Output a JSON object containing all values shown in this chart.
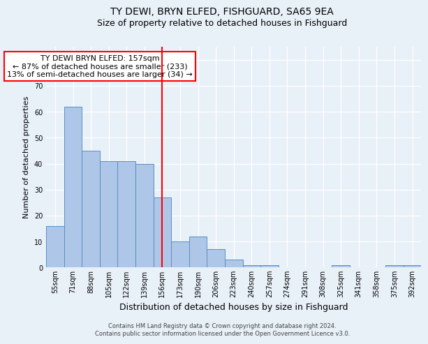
{
  "title1": "TY DEWI, BRYN ELFED, FISHGUARD, SA65 9EA",
  "title2": "Size of property relative to detached houses in Fishguard",
  "xlabel": "Distribution of detached houses by size in Fishguard",
  "ylabel": "Number of detached properties",
  "categories": [
    "55sqm",
    "71sqm",
    "88sqm",
    "105sqm",
    "122sqm",
    "139sqm",
    "156sqm",
    "173sqm",
    "190sqm",
    "206sqm",
    "223sqm",
    "240sqm",
    "257sqm",
    "274sqm",
    "291sqm",
    "308sqm",
    "325sqm",
    "341sqm",
    "358sqm",
    "375sqm",
    "392sqm"
  ],
  "values": [
    16,
    62,
    45,
    41,
    41,
    40,
    27,
    10,
    12,
    7,
    3,
    1,
    1,
    0,
    0,
    0,
    1,
    0,
    0,
    1,
    1
  ],
  "bar_color": "#aec6e8",
  "bar_edge_color": "#5a8fc0",
  "highlight_index": 6,
  "annotation_line1": "TY DEWI BRYN ELFED: 157sqm",
  "annotation_line2": "← 87% of detached houses are smaller (233)",
  "annotation_line3": "13% of semi-detached houses are larger (34) →",
  "annotation_box_color": "white",
  "annotation_box_edge_color": "red",
  "ylim": [
    0,
    85
  ],
  "yticks": [
    0,
    10,
    20,
    30,
    40,
    50,
    60,
    70,
    80
  ],
  "footer1": "Contains HM Land Registry data © Crown copyright and database right 2024.",
  "footer2": "Contains public sector information licensed under the Open Government Licence v3.0.",
  "background_color": "#e8f0f8",
  "plot_background": "#e8f0f8",
  "grid_color": "white",
  "title_fontsize": 10,
  "subtitle_fontsize": 9,
  "tick_fontsize": 7,
  "ylabel_fontsize": 8,
  "xlabel_fontsize": 9,
  "annotation_fontsize": 8,
  "footer_fontsize": 6
}
